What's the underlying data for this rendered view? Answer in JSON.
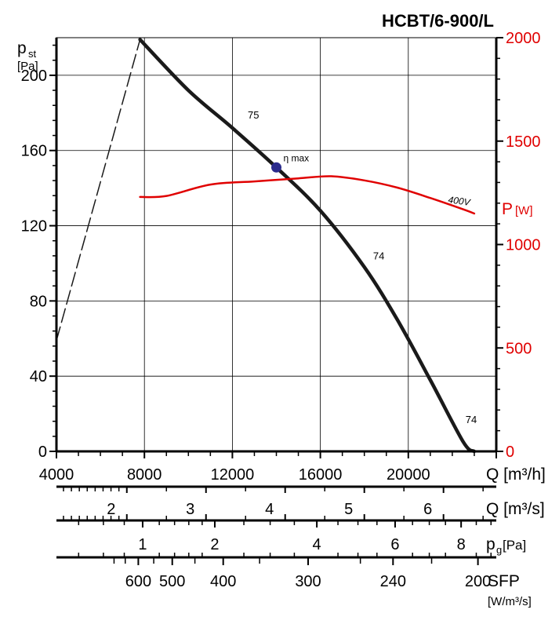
{
  "chart_data": {
    "type": "line",
    "title": "HCBT/6-900/L",
    "left_axis": {
      "label_main": "p",
      "label_sub": "st",
      "unit": "[Pa]",
      "range": [
        0,
        220
      ],
      "ticks": [
        "0",
        "40",
        "80",
        "120",
        "160",
        "200"
      ],
      "tick_values": [
        0,
        40,
        80,
        120,
        160,
        200
      ]
    },
    "right_axis": {
      "label_main": "P",
      "unit": "[W]",
      "range": [
        0,
        2000
      ],
      "ticks": [
        "0",
        "500",
        "1000",
        "1500",
        "2000"
      ],
      "tick_values": [
        0,
        500,
        1000,
        1500,
        2000
      ],
      "color": "#e00000"
    },
    "x_axis": {
      "label": "Q [m³/h]",
      "range": [
        4000,
        24000
      ],
      "ticks": [
        "4000",
        "8000",
        "12000",
        "16000",
        "20000"
      ],
      "tick_values": [
        4000,
        8000,
        12000,
        16000,
        20000
      ]
    },
    "series": [
      {
        "kind": "pressure",
        "points": [
          [
            7800,
            219
          ],
          [
            10000,
            192
          ],
          [
            12000,
            172
          ],
          [
            14000,
            151
          ],
          [
            16000,
            128
          ],
          [
            18000,
            98
          ],
          [
            19500,
            70
          ],
          [
            21000,
            38
          ],
          [
            22500,
            5
          ],
          [
            23000,
            0
          ]
        ],
        "color": "#1a1a1a"
      },
      {
        "kind": "pressure-dashed",
        "points": [
          [
            4000,
            59
          ],
          [
            7800,
            219
          ]
        ],
        "color": "#1a1a1a"
      },
      {
        "name": "400V",
        "axis": "right",
        "points": [
          [
            7800,
            1230
          ],
          [
            9000,
            1235
          ],
          [
            11000,
            1290
          ],
          [
            13000,
            1305
          ],
          [
            15000,
            1320
          ],
          [
            16500,
            1330
          ],
          [
            18000,
            1310
          ],
          [
            19500,
            1275
          ],
          [
            21000,
            1225
          ],
          [
            22500,
            1170
          ],
          [
            23000,
            1150
          ]
        ],
        "color": "#e00000"
      }
    ],
    "annotations": [
      {
        "text": "75",
        "x": 12700,
        "y": 177
      },
      {
        "text": "74",
        "x": 18400,
        "y": 102
      },
      {
        "text": "74",
        "x": 22600,
        "y": 15
      }
    ],
    "eta_max": {
      "label": "η max",
      "x": 14000,
      "y": 151,
      "color": "#2b2b8c"
    },
    "scales": [
      {
        "unit": "Q [m³/s]",
        "ticks": [
          "2",
          "3",
          "4",
          "5",
          "6"
        ],
        "tick_values": [
          2,
          3,
          4,
          5,
          6
        ],
        "minor_values": [
          1.2,
          1.3,
          1.4,
          1.5,
          1.6,
          1.7,
          1.8,
          1.9,
          2.5,
          3.5,
          4.5,
          5.5,
          6.5
        ]
      },
      {
        "unit_main": "p",
        "unit_sub": "g",
        "unit_rest": "[Pa]",
        "ticks": [
          "1",
          "2",
          "4",
          "6",
          "8"
        ],
        "tick_values": [
          1,
          2,
          4,
          6,
          8
        ],
        "minor_values": [
          3,
          5,
          7
        ]
      },
      {
        "unit": "SFP",
        "unit2": "[W/m³/s]",
        "ticks": [
          "600",
          "500",
          "400",
          "300",
          "240",
          "200"
        ],
        "tick_values": [
          600,
          500,
          400,
          300,
          240,
          200
        ]
      }
    ]
  }
}
